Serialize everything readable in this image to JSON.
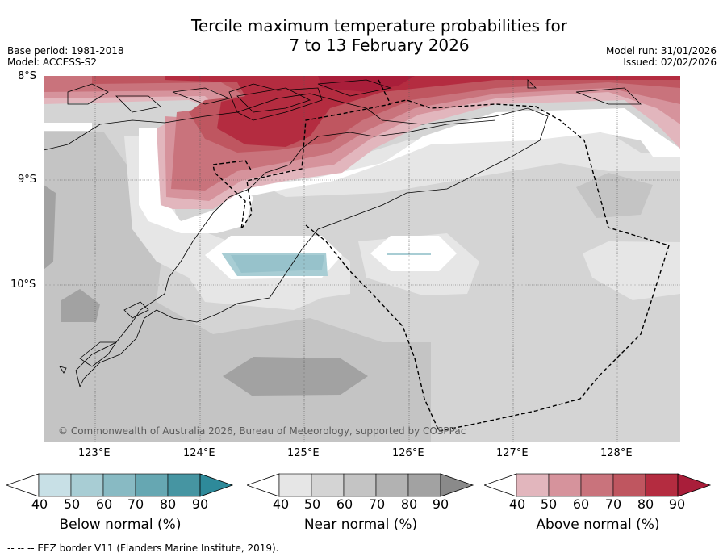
{
  "title": {
    "line1": "Tercile maximum temperature probabilities for",
    "line2": "7 to 13 February 2026"
  },
  "meta": {
    "base_period": "Base period: 1981-2018",
    "model": "Model: ACCESS-S2",
    "model_run": "Model run: 31/01/2026",
    "issued": "Issued: 02/02/2026"
  },
  "map": {
    "lat_labels": [
      "8°S",
      "9°S",
      "10°S"
    ],
    "lon_labels": [
      "123°E",
      "124°E",
      "125°E",
      "126°E",
      "127°E",
      "128°E"
    ],
    "copyright": "© Commonwealth of Australia 2026, Bureau of Meteorology, supported by COSPPac",
    "eez_note": "--  --  -- EEZ border V11 (Flanders Marine Institute, 2019)."
  },
  "colorbars": [
    {
      "label": "Below normal (%)",
      "ticks": [
        "40",
        "50",
        "60",
        "70",
        "80",
        "90"
      ],
      "colors": [
        "#c8e0e6",
        "#a8cdd4",
        "#88bac3",
        "#66a7b2",
        "#4695a2",
        "#2e8a9a"
      ]
    },
    {
      "label": "Near normal (%)",
      "ticks": [
        "40",
        "50",
        "60",
        "70",
        "80",
        "90"
      ],
      "colors": [
        "#e6e6e6",
        "#d4d4d4",
        "#c4c4c4",
        "#b2b2b2",
        "#a2a2a2",
        "#8a8a8a"
      ]
    },
    {
      "label": "Above normal (%)",
      "ticks": [
        "40",
        "50",
        "60",
        "70",
        "80",
        "90"
      ],
      "colors": [
        "#e2b6bd",
        "#d6939c",
        "#c9737c",
        "#bf5660",
        "#b42c40",
        "#a91e3a"
      ]
    }
  ],
  "colors": {
    "above_50": "#d6939c",
    "above_60": "#c9737c",
    "above_70": "#bf5660",
    "above_80": "#b42c40",
    "above_90": "#a91e3a",
    "near_40": "#e6e6e6",
    "near_50": "#d4d4d4",
    "near_60": "#c4c4c4",
    "near_80": "#a2a2a2",
    "below_50": "#a8cdd4"
  }
}
